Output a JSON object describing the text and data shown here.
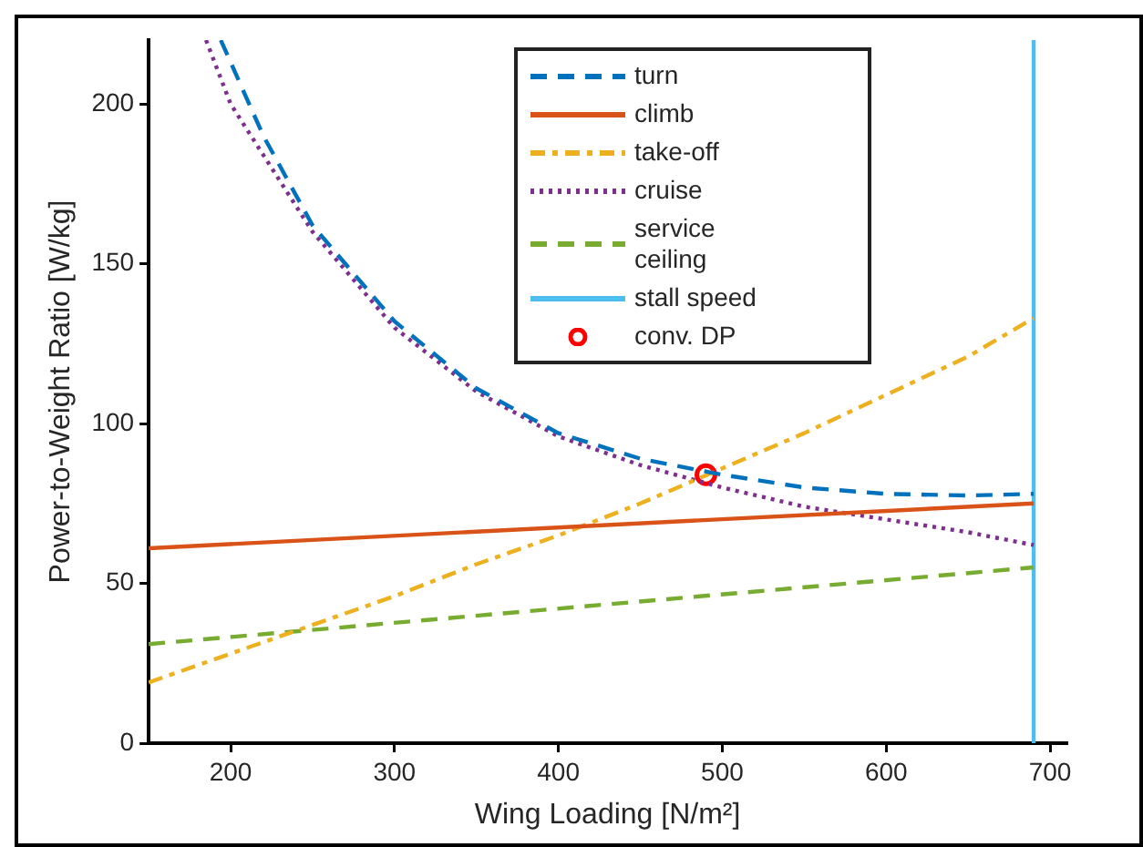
{
  "chart_data": {
    "type": "line",
    "xlabel": "Wing Loading [N/m²]",
    "ylabel": "Power-to-Weight Ratio [W/kg]",
    "xlim": [
      150,
      710
    ],
    "xticks": [
      200,
      300,
      400,
      500,
      600,
      700
    ],
    "ylim": [
      0,
      220
    ],
    "yticks": [
      0,
      50,
      100,
      150,
      200
    ],
    "grid": false,
    "legend": "top",
    "marker": "none",
    "series": [
      {
        "name": "turn",
        "color": "#0072bd",
        "line_style": "dashed",
        "x": [
          194,
          220,
          250,
          300,
          350,
          400,
          450,
          500,
          550,
          600,
          650,
          690
        ],
        "values": [
          220,
          190,
          162,
          132,
          111,
          97,
          89,
          84,
          80,
          78,
          77.5,
          78
        ]
      },
      {
        "name": "climb",
        "color": "#d95319",
        "line_style": "solid",
        "x": [
          150,
          690
        ],
        "values": [
          61,
          75
        ]
      },
      {
        "name": "take-off",
        "color": "#edb120",
        "line_style": "dashdot",
        "x": [
          150,
          200,
          250,
          300,
          350,
          400,
          450,
          500,
          550,
          600,
          650,
          690
        ],
        "values": [
          19,
          28,
          37,
          46,
          56,
          65,
          75,
          86,
          97,
          109,
          121,
          133
        ]
      },
      {
        "name": "cruise",
        "color": "#7e2f8e",
        "line_style": "dotted",
        "x": [
          185,
          200,
          250,
          300,
          350,
          400,
          450,
          500,
          550,
          600,
          650,
          690
        ],
        "values": [
          220,
          200,
          160,
          130,
          110,
          96,
          87,
          80,
          74,
          70,
          66,
          62
        ]
      },
      {
        "name": "service ceiling",
        "color": "#77ac30",
        "line_style": "dashed",
        "x": [
          150,
          690
        ],
        "values": [
          31,
          55
        ]
      },
      {
        "name": "stall speed",
        "color": "#4dbeee",
        "line_style": "solid",
        "x": [
          690,
          690
        ],
        "values": [
          0,
          220
        ]
      },
      {
        "name": "conv. DP",
        "type": "scatter",
        "color": "#ff0000",
        "marker": "circle",
        "x": [
          490
        ],
        "values": [
          84
        ]
      }
    ]
  }
}
